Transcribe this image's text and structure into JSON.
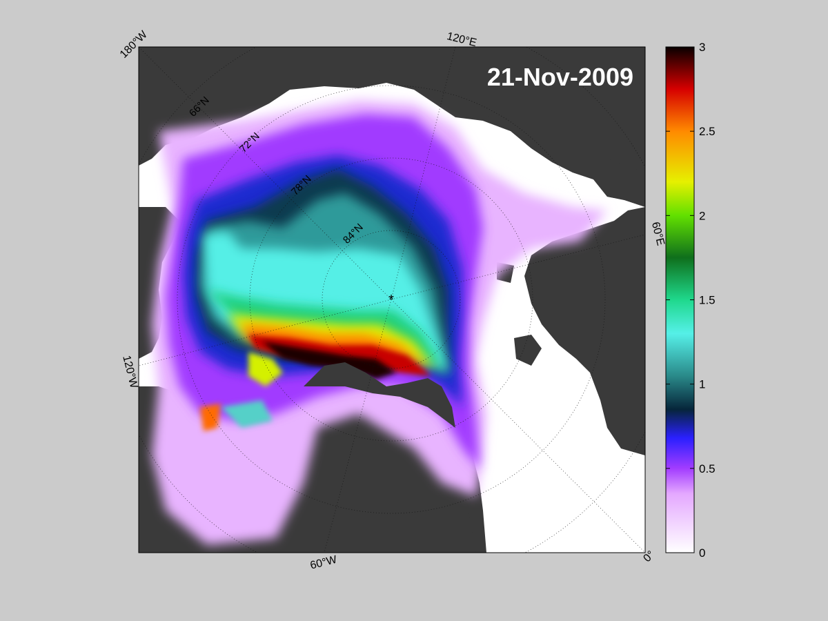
{
  "map": {
    "date_label": "21-Nov-2009",
    "longitude_labels": [
      "180°W",
      "120°E",
      "60°E",
      "120°W",
      "60°W",
      "0°"
    ],
    "latitude_labels": [
      "66°N",
      "72°N",
      "78°N",
      "84°N"
    ],
    "pole_marker": "*",
    "colors": {
      "figure_background": "#cbcbcb",
      "land": "#3a3a3a",
      "open_water": "#ffffff"
    }
  },
  "colorbar": {
    "min": 0,
    "max": 3,
    "tick_values": [
      0,
      0.5,
      1,
      1.5,
      2,
      2.5,
      3
    ],
    "tick_labels": [
      "0",
      "0.5",
      "1",
      "1.5",
      "2",
      "2.5",
      "3"
    ],
    "colormap_stops": [
      {
        "value": 0.0,
        "color": "#ffffff"
      },
      {
        "value": 0.35,
        "color": "#e4a8ff"
      },
      {
        "value": 0.5,
        "color": "#a23cff"
      },
      {
        "value": 0.68,
        "color": "#2a20ff"
      },
      {
        "value": 0.85,
        "color": "#06253a"
      },
      {
        "value": 1.05,
        "color": "#2a8a8a"
      },
      {
        "value": 1.3,
        "color": "#55f0e8"
      },
      {
        "value": 1.5,
        "color": "#1fd88c"
      },
      {
        "value": 1.75,
        "color": "#0f6f1c"
      },
      {
        "value": 2.0,
        "color": "#62e000"
      },
      {
        "value": 2.2,
        "color": "#e6f000"
      },
      {
        "value": 2.5,
        "color": "#ff8a00"
      },
      {
        "value": 2.75,
        "color": "#d60000"
      },
      {
        "value": 3.0,
        "color": "#080000"
      }
    ]
  }
}
